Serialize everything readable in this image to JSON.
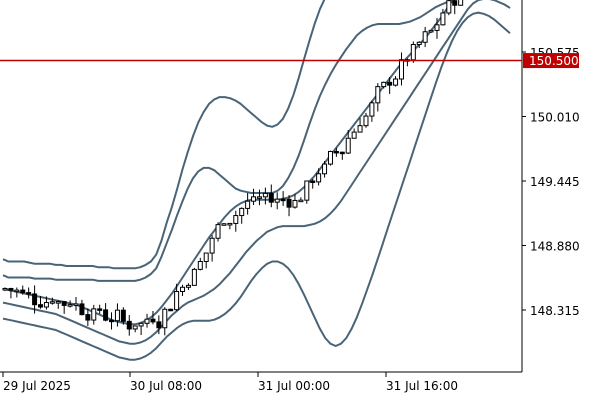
{
  "chart_data": {
    "type": "candlestick",
    "y_ticks": [
      "150.575",
      "150.010",
      "149.445",
      "148.880",
      "148.315"
    ],
    "y_tick_values": [
      150.575,
      150.01,
      149.445,
      148.88,
      148.315
    ],
    "x_ticks": [
      "29 Jul 2025",
      "30 Jul 08:00",
      "31 Jul 00:00",
      "31 Jul 16:00"
    ],
    "ylim": [
      147.7,
      151.0
    ],
    "grid": false,
    "current_price": {
      "label": "150.500",
      "value": 150.5,
      "color": "#c00000"
    },
    "indicator": {
      "name": "Bollinger Bands",
      "color": "#4a6477",
      "bands": {
        "upper3": [
          148.76,
          148.74,
          148.74,
          148.74,
          148.74,
          148.73,
          148.72,
          148.72,
          148.72,
          148.72,
          148.71,
          148.71,
          148.7,
          148.7,
          148.7,
          148.7,
          148.7,
          148.7,
          148.69,
          148.69,
          148.69,
          148.68,
          148.68,
          148.68,
          148.68,
          148.68,
          148.69,
          148.71,
          148.74,
          148.8,
          148.92,
          149.08,
          149.22,
          149.38,
          149.55,
          149.7,
          149.84,
          149.96,
          150.05,
          150.12,
          150.16,
          150.18,
          150.18,
          150.17,
          150.15,
          150.12,
          150.08,
          150.04,
          150.0,
          149.96,
          149.93,
          149.92,
          149.94,
          149.99,
          150.08,
          150.2,
          150.35,
          150.51,
          150.67,
          150.82,
          150.95,
          151.05,
          151.12,
          151.15,
          151.15,
          151.15,
          151.15,
          151.15,
          151.15,
          151.15,
          151.15,
          151.15,
          151.15,
          151.15,
          151.15,
          151.15,
          151.15,
          151.15,
          151.15,
          151.15,
          151.15,
          151.15,
          151.15,
          151.15,
          151.15,
          151.15,
          151.15,
          151.15,
          151.15,
          151.15,
          151.15,
          151.15,
          151.15,
          151.15,
          151.15,
          151.15,
          151.15
        ],
        "upper2": [
          148.62,
          148.6,
          148.6,
          148.6,
          148.6,
          148.6,
          148.59,
          148.59,
          148.59,
          148.59,
          148.58,
          148.58,
          148.58,
          148.58,
          148.58,
          148.58,
          148.58,
          148.58,
          148.57,
          148.57,
          148.57,
          148.57,
          148.57,
          148.57,
          148.57,
          148.57,
          148.58,
          148.6,
          148.63,
          148.68,
          148.78,
          148.9,
          149.02,
          149.15,
          149.27,
          149.38,
          149.47,
          149.53,
          149.56,
          149.56,
          149.54,
          149.5,
          149.46,
          149.42,
          149.38,
          149.36,
          149.35,
          149.34,
          149.34,
          149.34,
          149.34,
          149.34,
          149.36,
          149.4,
          149.47,
          149.56,
          149.67,
          149.8,
          149.94,
          150.07,
          150.19,
          150.29,
          150.38,
          150.46,
          150.53,
          150.6,
          150.66,
          150.72,
          150.76,
          150.79,
          150.81,
          150.82,
          150.82,
          150.82,
          150.82,
          150.82,
          150.83,
          150.84,
          150.86,
          150.88,
          150.91,
          150.94,
          150.97,
          150.99,
          151.01,
          151.03,
          151.05,
          151.07,
          151.09,
          151.11,
          151.12,
          151.13,
          151.14,
          151.14,
          151.14,
          151.14,
          151.14
        ],
        "mid": [
          148.5,
          148.49,
          148.48,
          148.47,
          148.46,
          148.45,
          148.44,
          148.43,
          148.42,
          148.41,
          148.4,
          148.39,
          148.38,
          148.37,
          148.36,
          148.34,
          148.32,
          148.3,
          148.28,
          148.26,
          148.24,
          148.22,
          148.21,
          148.2,
          148.19,
          148.19,
          148.2,
          148.22,
          148.25,
          148.29,
          148.34,
          148.4,
          148.46,
          148.53,
          148.6,
          148.67,
          148.74,
          148.81,
          148.88,
          148.95,
          149.01,
          149.07,
          149.13,
          149.18,
          149.22,
          149.25,
          149.27,
          149.28,
          149.28,
          149.28,
          149.28,
          149.28,
          149.28,
          149.29,
          149.3,
          149.32,
          149.35,
          149.39,
          149.44,
          149.49,
          149.55,
          149.61,
          149.67,
          149.73,
          149.79,
          149.85,
          149.91,
          149.97,
          150.03,
          150.09,
          150.15,
          150.21,
          150.27,
          150.33,
          150.39,
          150.45,
          150.5,
          150.55,
          150.6,
          150.65,
          150.7,
          150.76,
          150.82,
          150.88,
          150.95,
          151.02,
          151.09,
          151.15,
          151.2,
          151.25,
          151.28,
          151.3,
          151.31,
          151.3,
          151.28,
          151.25,
          151.22
        ],
        "lower2": [
          148.38,
          148.37,
          148.36,
          148.35,
          148.34,
          148.33,
          148.32,
          148.31,
          148.3,
          148.29,
          148.28,
          148.26,
          148.24,
          148.22,
          148.2,
          148.18,
          148.16,
          148.14,
          148.12,
          148.1,
          148.08,
          148.06,
          148.04,
          148.03,
          148.02,
          148.02,
          148.03,
          148.05,
          148.08,
          148.12,
          148.17,
          148.22,
          148.27,
          148.31,
          148.35,
          148.38,
          148.4,
          148.42,
          148.44,
          148.47,
          148.5,
          148.54,
          148.59,
          148.64,
          148.7,
          148.76,
          148.82,
          148.87,
          148.92,
          148.96,
          149.0,
          149.02,
          149.04,
          149.05,
          149.05,
          149.05,
          149.05,
          149.05,
          149.06,
          149.07,
          149.09,
          149.12,
          149.16,
          149.21,
          149.27,
          149.34,
          149.41,
          149.48,
          149.55,
          149.62,
          149.69,
          149.76,
          149.83,
          149.9,
          149.97,
          150.04,
          150.11,
          150.18,
          150.25,
          150.32,
          150.39,
          150.46,
          150.53,
          150.6,
          150.67,
          150.74,
          150.81,
          150.88,
          150.95,
          151.0,
          151.03,
          151.04,
          151.04,
          151.03,
          151.01,
          150.99,
          150.96
        ],
        "lower3": [
          148.24,
          148.23,
          148.22,
          148.21,
          148.2,
          148.19,
          148.18,
          148.17,
          148.16,
          148.15,
          148.14,
          148.12,
          148.1,
          148.08,
          148.06,
          148.04,
          148.02,
          148.0,
          147.98,
          147.96,
          147.94,
          147.92,
          147.9,
          147.89,
          147.88,
          147.88,
          147.89,
          147.91,
          147.94,
          147.98,
          148.03,
          148.08,
          148.12,
          148.16,
          148.19,
          148.21,
          148.22,
          148.22,
          148.22,
          148.22,
          148.23,
          148.25,
          148.28,
          148.32,
          148.37,
          148.43,
          148.5,
          148.57,
          148.63,
          148.68,
          148.72,
          148.74,
          148.74,
          148.72,
          148.68,
          148.62,
          148.54,
          148.45,
          148.35,
          148.25,
          148.15,
          148.07,
          148.02,
          148.0,
          148.02,
          148.07,
          148.15,
          148.25,
          148.37,
          148.5,
          148.63,
          148.77,
          148.91,
          149.05,
          149.19,
          149.33,
          149.47,
          149.61,
          149.75,
          149.89,
          150.03,
          150.17,
          150.31,
          150.44,
          150.56,
          150.67,
          150.76,
          150.83,
          150.88,
          150.91,
          150.92,
          150.91,
          150.89,
          150.86,
          150.82,
          150.78,
          150.74
        ]
      }
    }
  }
}
